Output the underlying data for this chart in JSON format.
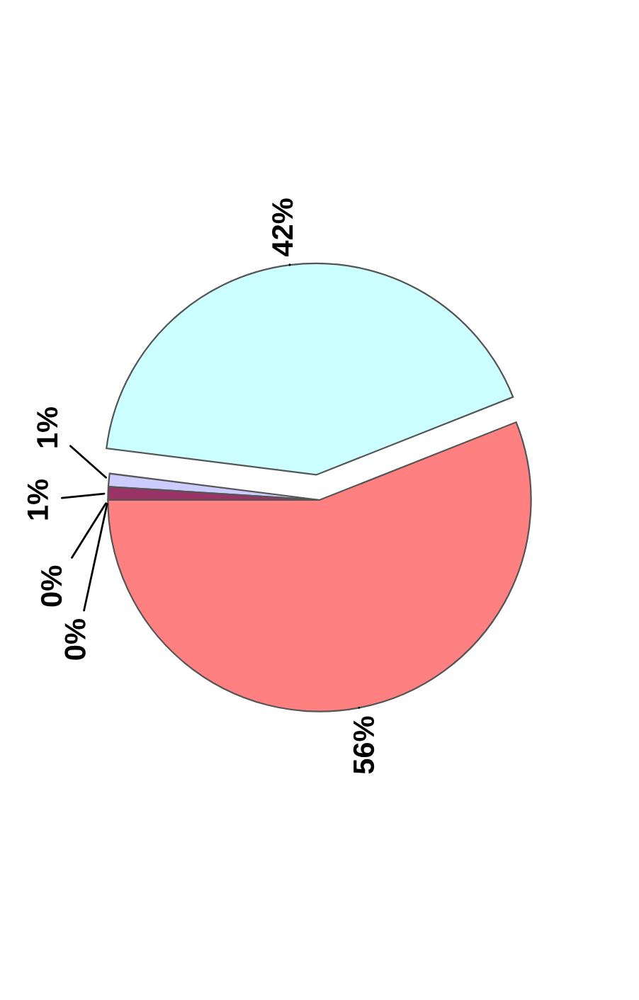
{
  "chart_data": {
    "type": "pie",
    "categories": [
      null,
      null,
      null,
      null,
      null,
      null
    ],
    "values": [
      56,
      42,
      1,
      1,
      0,
      0
    ],
    "colors": [
      "#ff8080",
      "#ccffff",
      "#ccccff",
      "#993366",
      "#ffffcc",
      "#660066"
    ],
    "value_labels": [
      "56%",
      "42%",
      "1%",
      "1%",
      "0%",
      "0%"
    ],
    "legend": false
  }
}
